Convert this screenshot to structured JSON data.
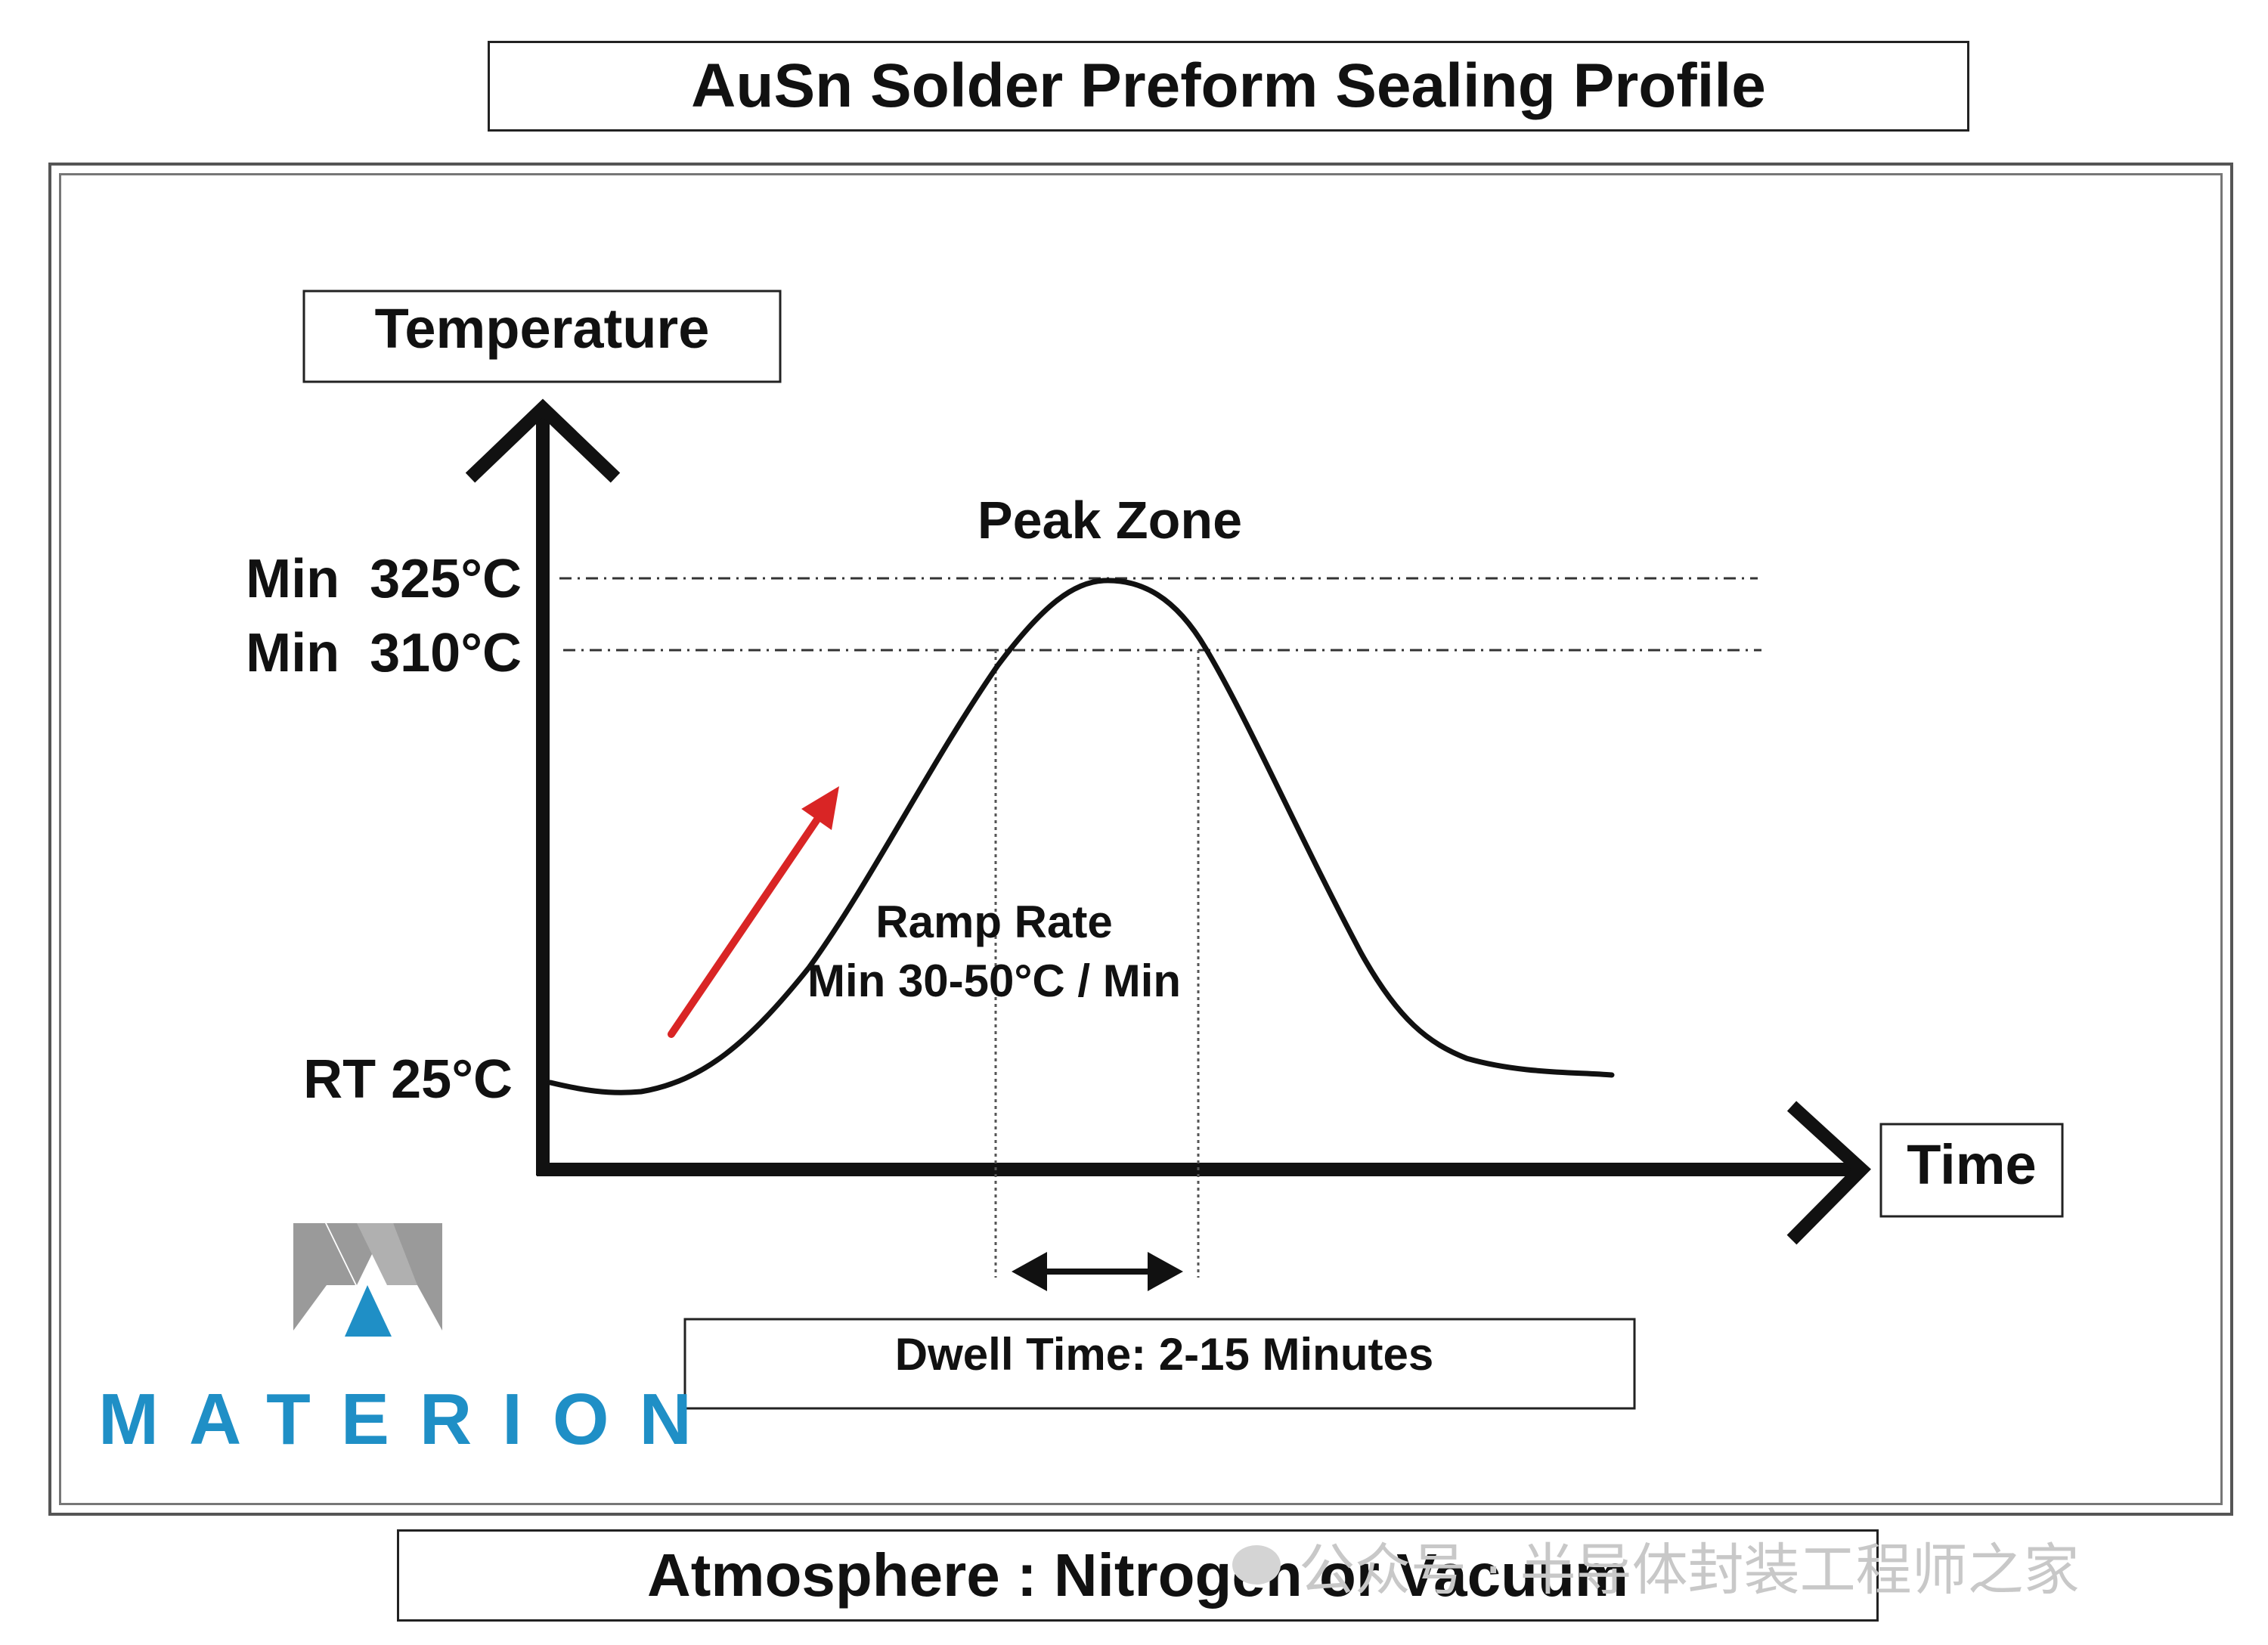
{
  "title": "AuSn Solder Preform Sealing Profile",
  "axes": {
    "y_label": "Temperature",
    "x_label": "Time"
  },
  "temperature_levels": {
    "upper": "Min  325°C",
    "lower": "Min  310°C",
    "room": "RT 25°C"
  },
  "annotations": {
    "peak_zone": "Peak Zone",
    "ramp_rate_line1": "Ramp Rate",
    "ramp_rate_line2": "Min 30-50°C / Min",
    "dwell_time": "Dwell Time: 2-15 Minutes"
  },
  "atmosphere": "Atmosphere : Nitrogen or Vacuum",
  "logo": {
    "name": "MATERION",
    "color_gray": "#9a9a9a",
    "color_blue": "#1f8fc6"
  },
  "watermark": "公众号 · 半导体封装工程师之家",
  "colors": {
    "curve": "#111111",
    "ramp_arrow": "#d92525",
    "axes": "#111111"
  }
}
